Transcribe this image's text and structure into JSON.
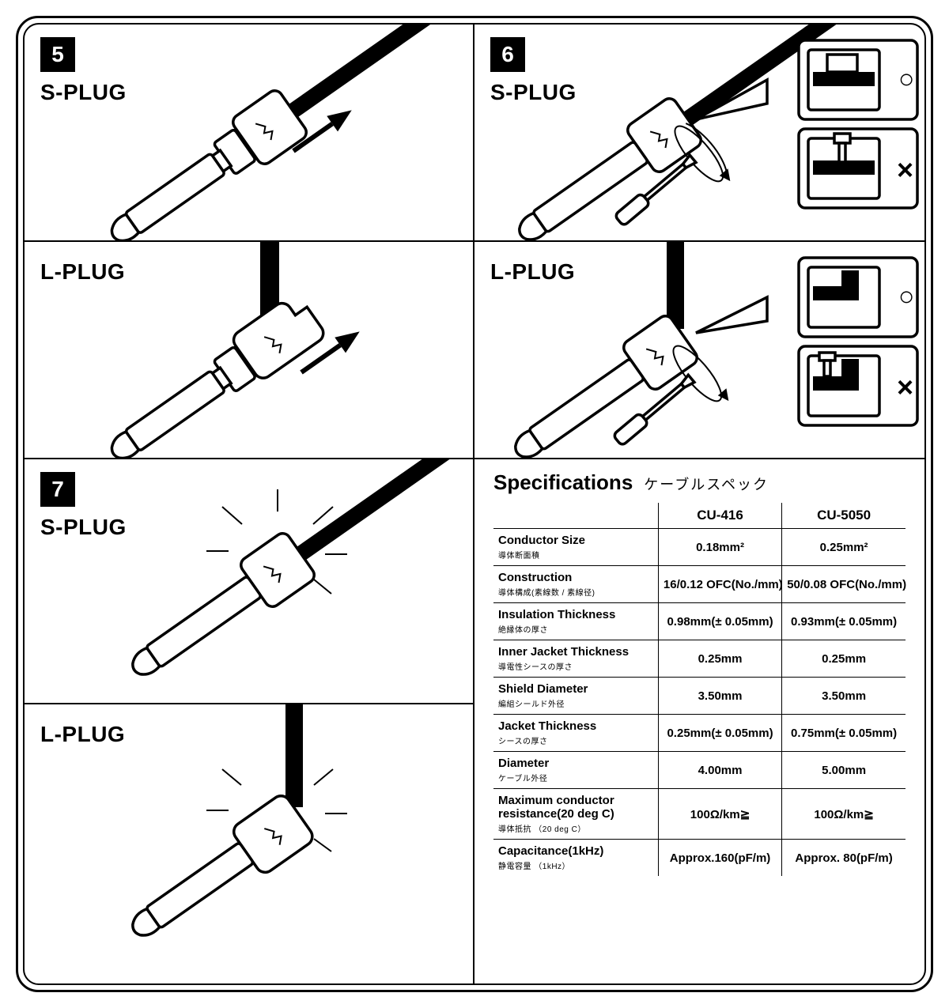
{
  "colors": {
    "ink": "#000000",
    "paper": "#ffffff"
  },
  "steps": {
    "s5": {
      "num": "5",
      "s_label": "S-PLUG",
      "l_label": "L-PLUG"
    },
    "s6": {
      "num": "6",
      "s_label": "S-PLUG",
      "l_label": "L-PLUG",
      "ok": "○",
      "ng": "×"
    },
    "s7": {
      "num": "7",
      "s_label": "S-PLUG",
      "l_label": "L-PLUG"
    }
  },
  "spec": {
    "title_en": "Specifications",
    "title_jp": "ケーブルスペック",
    "cols": [
      "CU-416",
      "CU-5050"
    ],
    "rows": [
      {
        "en": "Conductor Size",
        "jp": "導体断面積",
        "v": [
          "0.18mm²",
          "0.25mm²"
        ]
      },
      {
        "en": "Construction",
        "jp": "導体構成(素線数 / 素線径)",
        "v": [
          "16/0.12 OFC(No./mm)",
          "50/0.08 OFC(No./mm)"
        ]
      },
      {
        "en": "Insulation Thickness",
        "jp": "絶縁体の厚さ",
        "v": [
          "0.98mm(± 0.05mm)",
          "0.93mm(± 0.05mm)"
        ]
      },
      {
        "en": "Inner Jacket Thickness",
        "jp": "導電性シースの厚さ",
        "v": [
          "0.25mm",
          "0.25mm"
        ]
      },
      {
        "en": "Shield Diameter",
        "jp": "編組シールド外径",
        "v": [
          "3.50mm",
          "3.50mm"
        ]
      },
      {
        "en": "Jacket Thickness",
        "jp": "シースの厚さ",
        "v": [
          "0.25mm(± 0.05mm)",
          "0.75mm(± 0.05mm)"
        ]
      },
      {
        "en": "Diameter",
        "jp": "ケーブル外径",
        "v": [
          "4.00mm",
          "5.00mm"
        ]
      },
      {
        "en": "Maximum conductor resistance(20 deg C)",
        "jp": "導体抵抗 （20 deg C）",
        "v": [
          "100Ω/km≧",
          "100Ω/km≧"
        ]
      },
      {
        "en": "Capacitance(1kHz)",
        "jp": "静電容量 （1kHz）",
        "v": [
          "Approx.160(pF/m)",
          "Approx. 80(pF/m)"
        ]
      }
    ]
  }
}
